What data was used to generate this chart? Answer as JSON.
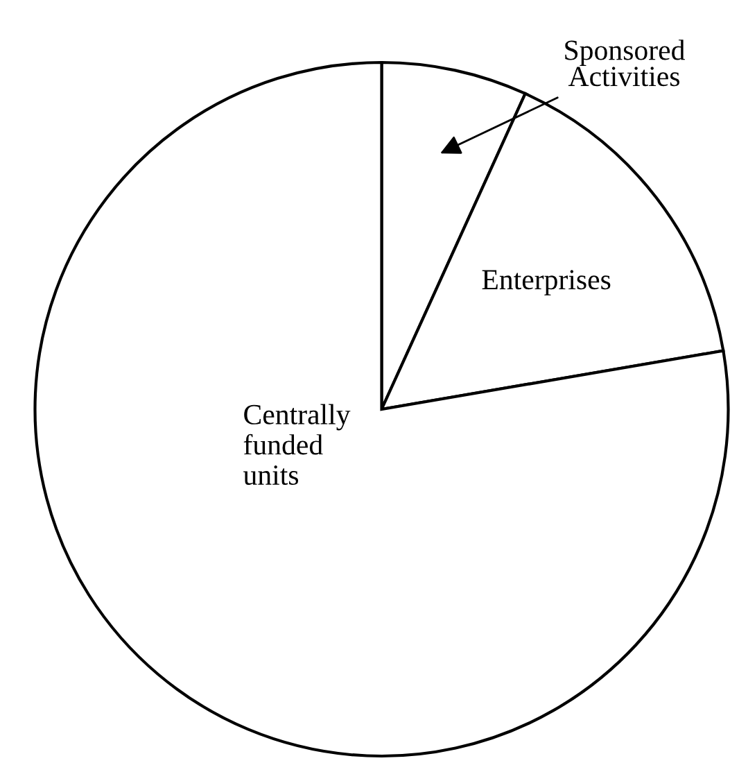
{
  "chart_data": {
    "type": "pie",
    "categories": [
      "Sponsored\nActivities",
      "Enterprises",
      "Centrally\nfunded\nunits"
    ],
    "values": [
      6.8,
      15.5,
      77.7
    ],
    "colors": [
      "#ffffff",
      "#ffffff",
      "#ffffff"
    ]
  }
}
